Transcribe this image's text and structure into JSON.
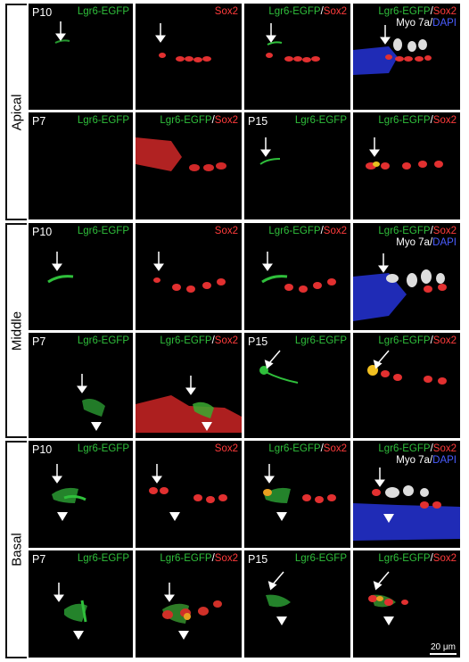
{
  "sections": [
    {
      "label": "Apical"
    },
    {
      "label": "Middle"
    },
    {
      "label": "Basal"
    }
  ],
  "panels": {
    "apical_p10_egfp": {
      "age": "P10",
      "green": "Lgr6-EGFP"
    },
    "apical_p10_sox2": {
      "red": "Sox2"
    },
    "apical_p10_merge": {
      "green": "Lgr6-EGFP",
      "slash": "/",
      "red": "Sox2"
    },
    "apical_p10_full": {
      "green": "Lgr6-EGFP",
      "slash": "/",
      "red": "Sox2",
      "white": "Myo 7a",
      "slash2": "/",
      "blue": "DAPI"
    },
    "apical_p7_egfp": {
      "age": "P7",
      "green": "Lgr6-EGFP"
    },
    "apical_p7_merge": {
      "green": "Lgr6-EGFP",
      "slash": "/",
      "red": "Sox2"
    },
    "apical_p15_egfp": {
      "age": "P15",
      "green": "Lgr6-EGFP"
    },
    "apical_p15_merge": {
      "green": "Lgr6-EGFP",
      "slash": "/",
      "red": "Sox2"
    },
    "middle_p10_egfp": {
      "age": "P10",
      "green": "Lgr6-EGFP"
    },
    "middle_p10_sox2": {
      "red": "Sox2"
    },
    "middle_p10_merge": {
      "green": "Lgr6-EGFP",
      "slash": "/",
      "red": "Sox2"
    },
    "middle_p10_full": {
      "green": "Lgr6-EGFP",
      "slash": "/",
      "red": "Sox2",
      "white": "Myo 7a",
      "slash2": "/",
      "blue": "DAPI"
    },
    "middle_p7_egfp": {
      "age": "P7",
      "green": "Lgr6-EGFP"
    },
    "middle_p7_merge": {
      "green": "Lgr6-EGFP",
      "slash": "/",
      "red": "Sox2"
    },
    "middle_p15_egfp": {
      "age": "P15",
      "green": "Lgr6-EGFP"
    },
    "middle_p15_merge": {
      "green": "Lgr6-EGFP",
      "slash": "/",
      "red": "Sox2"
    },
    "basal_p10_egfp": {
      "age": "P10",
      "green": "Lgr6-EGFP"
    },
    "basal_p10_sox2": {
      "red": "Sox2"
    },
    "basal_p10_merge": {
      "green": "Lgr6-EGFP",
      "slash": "/",
      "red": "Sox2"
    },
    "basal_p10_full": {
      "green": "Lgr6-EGFP",
      "slash": "/",
      "red": "Sox2",
      "white": "Myo 7a",
      "slash2": "/",
      "blue": "DAPI"
    },
    "basal_p7_egfp": {
      "age": "P7",
      "green": "Lgr6-EGFP"
    },
    "basal_p7_merge": {
      "green": "Lgr6-EGFP",
      "slash": "/",
      "red": "Sox2"
    },
    "basal_p15_egfp": {
      "age": "P15",
      "green": "Lgr6-EGFP"
    },
    "basal_p15_merge": {
      "green": "Lgr6-EGFP",
      "slash": "/",
      "red": "Sox2"
    }
  },
  "scale_bar": "20 μm",
  "colors": {
    "green": "#2fbf3b",
    "red": "#ff3b3b",
    "white": "#ffffff",
    "blue": "#4a5dff",
    "background": "#000000"
  }
}
